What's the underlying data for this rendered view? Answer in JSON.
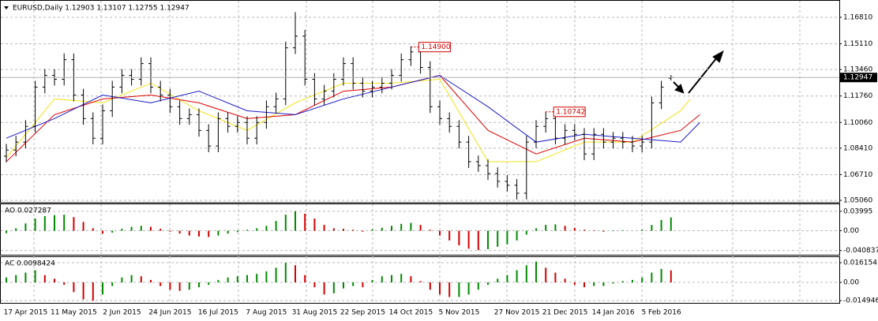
{
  "chart_data": [
    {
      "type": "ohlc",
      "title": "EURUSD,Daily  1.12903 1.13107 1.12755 1.12947",
      "color": "#000000",
      "categories": [
        null,
        null,
        "17 Apr 2015",
        null,
        null,
        null,
        null,
        "11 May 2015",
        null,
        null,
        null,
        null,
        "2 Jun 2015",
        null,
        null,
        null,
        null,
        "24 Jun 2015",
        null,
        null,
        null,
        null,
        "16 Jul 2015",
        null,
        null,
        null,
        null,
        "7 Aug 2015",
        null,
        null,
        null,
        null,
        "31 Aug 2015",
        null,
        null,
        null,
        null,
        "22 Sep 2015",
        null,
        null,
        null,
        null,
        "14 Oct 2015",
        null,
        null,
        null,
        null,
        "5 Nov 2015",
        null,
        null,
        null,
        null,
        null,
        "27 Nov 2015",
        null,
        null,
        null,
        null,
        "21 Dec 2015",
        null,
        null,
        null,
        null,
        "14 Jan 2016",
        null,
        null,
        null,
        null,
        "5 Feb 2016",
        null
      ],
      "open": [
        1.079,
        1.0829,
        1.088,
        1.0981,
        1.1233,
        1.1308,
        1.1283,
        1.1409,
        1.1182,
        1.1031,
        1.0905,
        1.1081,
        1.1233,
        1.1308,
        1.1283,
        1.1384,
        1.1233,
        1.1182,
        1.1107,
        1.1031,
        1.1056,
        1.0955,
        1.0855,
        1.1031,
        1.0981,
        1.1006,
        1.0905,
        1.1006,
        1.1107,
        1.1157,
        1.1485,
        1.156,
        1.1283,
        1.1157,
        1.1207,
        1.1283,
        1.1384,
        1.1258,
        1.1207,
        1.1233,
        1.1258,
        1.1308,
        1.1409,
        1.1459,
        1.1359,
        1.1107,
        1.1031,
        1.0981,
        1.088,
        1.0754,
        1.0729,
        1.0678,
        1.0628,
        1.0603,
        1.0552,
        1.088,
        1.0981,
        1.1031,
        1.0905,
        1.0955,
        1.093,
        1.0804,
        1.093,
        1.088,
        1.0905,
        1.088,
        1.0855,
        1.088,
        1.1132,
        1.12903
      ],
      "high": [
        1.0869,
        1.092,
        1.1021,
        1.1273,
        1.1348,
        1.1348,
        1.1449,
        1.1449,
        1.1222,
        1.1071,
        1.1121,
        1.1273,
        1.1348,
        1.1348,
        1.1424,
        1.1424,
        1.1273,
        1.1222,
        1.1147,
        1.1096,
        1.1096,
        1.0995,
        1.1071,
        1.1071,
        1.1046,
        1.1046,
        1.1046,
        1.1147,
        1.1197,
        1.1525,
        1.1714,
        1.16,
        1.1323,
        1.1247,
        1.1323,
        1.1424,
        1.1424,
        1.1298,
        1.1273,
        1.1298,
        1.1348,
        1.1449,
        1.1495,
        1.1499,
        1.1399,
        1.1147,
        1.1071,
        1.1021,
        1.092,
        1.0794,
        1.0769,
        1.0718,
        1.0668,
        1.0643,
        1.092,
        1.1021,
        1.1074,
        1.1071,
        1.0995,
        1.0995,
        1.097,
        1.097,
        1.097,
        1.0945,
        1.0945,
        1.092,
        1.092,
        1.1172,
        1.1273,
        1.13107
      ],
      "low": [
        1.075,
        1.0789,
        1.084,
        1.0941,
        1.1193,
        1.1243,
        1.1243,
        1.1142,
        1.0991,
        1.0865,
        1.0865,
        1.1041,
        1.1193,
        1.1243,
        1.1243,
        1.1193,
        1.1142,
        1.1067,
        1.0991,
        1.0991,
        1.0915,
        1.0815,
        1.0815,
        1.0941,
        1.0941,
        1.0865,
        1.0865,
        1.0966,
        1.1067,
        1.1117,
        1.1445,
        1.1243,
        1.1117,
        1.1117,
        1.1167,
        1.1243,
        1.1218,
        1.1167,
        1.1167,
        1.1193,
        1.1218,
        1.1268,
        1.1369,
        1.1319,
        1.1067,
        1.0991,
        1.0941,
        1.084,
        1.0714,
        1.0689,
        1.0638,
        1.0588,
        1.0563,
        1.0512,
        1.0512,
        1.084,
        1.0941,
        1.0865,
        1.0865,
        1.089,
        1.0764,
        1.0764,
        1.084,
        1.084,
        1.084,
        1.0815,
        1.0815,
        1.084,
        1.1092,
        1.12755
      ],
      "close": [
        1.0829,
        1.088,
        1.0981,
        1.1233,
        1.1308,
        1.1283,
        1.1409,
        1.1182,
        1.1031,
        1.0905,
        1.1081,
        1.1233,
        1.1308,
        1.1283,
        1.1384,
        1.1233,
        1.1182,
        1.1107,
        1.1031,
        1.1056,
        1.0955,
        1.0855,
        1.1031,
        1.0981,
        1.1006,
        1.0905,
        1.1006,
        1.1107,
        1.1157,
        1.1485,
        1.156,
        1.1283,
        1.1157,
        1.1207,
        1.1283,
        1.1384,
        1.1258,
        1.1207,
        1.1233,
        1.1258,
        1.1308,
        1.1409,
        1.1459,
        1.1359,
        1.1107,
        1.1031,
        1.0981,
        1.088,
        1.0754,
        1.0729,
        1.0678,
        1.0628,
        1.0603,
        1.0552,
        1.088,
        1.0981,
        1.1031,
        1.0905,
        1.0955,
        1.093,
        1.0804,
        1.093,
        1.088,
        1.0905,
        1.088,
        1.0855,
        1.088,
        1.1132,
        1.1233,
        1.12947
      ],
      "series": [
        {
          "color": "#f2e21a",
          "x": [
            0,
            5,
            10,
            15,
            20,
            25,
            30,
            35,
            40,
            45,
            50,
            55,
            60,
            65,
            70,
            71
          ],
          "values": [
            1.0779,
            1.1157,
            1.1132,
            1.1258,
            1.1081,
            1.0955,
            1.1132,
            1.1258,
            1.1258,
            1.1283,
            1.0754,
            1.0754,
            1.088,
            1.088,
            1.1081,
            1.1157
          ]
        },
        {
          "color": "#e00000",
          "x": [
            0,
            5,
            10,
            15,
            20,
            25,
            30,
            35,
            40,
            45,
            50,
            55,
            60,
            65,
            70,
            72
          ],
          "values": [
            1.0754,
            1.1056,
            1.1157,
            1.1182,
            1.1132,
            1.1031,
            1.1056,
            1.1207,
            1.1233,
            1.1308,
            1.0955,
            1.0804,
            1.0905,
            1.088,
            1.0955,
            1.1056
          ]
        },
        {
          "color": "#1a1ac8",
          "x": [
            0,
            5,
            10,
            15,
            20,
            25,
            30,
            35,
            40,
            45,
            50,
            55,
            60,
            65,
            70,
            72
          ],
          "values": [
            1.0905,
            1.1031,
            1.1182,
            1.1132,
            1.1207,
            1.1081,
            1.1056,
            1.1157,
            1.1233,
            1.1308,
            1.1107,
            1.088,
            1.093,
            1.0905,
            1.088,
            1.1006
          ]
        }
      ],
      "annotations": [
        {
          "bar": 42,
          "value": 1.149,
          "label": "1.14900"
        },
        {
          "bar": 56,
          "value": 1.10742,
          "label": "1.10742"
        }
      ],
      "last_price": {
        "value": 1.12947,
        "label": "1.12947"
      },
      "ylim": [
        1.0491,
        1.1787
      ],
      "yticks": [
        {
          "value": 1.1681,
          "label": "1.16810"
        },
        {
          "value": 1.1511,
          "label": "1.15110"
        },
        {
          "value": 1.1346,
          "label": "1.13460"
        },
        {
          "value": 1.1176,
          "label": "1.11760"
        },
        {
          "value": 1.1006,
          "label": "1.10060"
        },
        {
          "value": 1.0841,
          "label": "1.08410"
        },
        {
          "value": 1.0671,
          "label": "1.06710"
        },
        {
          "value": 1.0506,
          "label": "1.05060"
        }
      ],
      "grid": true
    },
    {
      "type": "histogram",
      "title": "AO 0.027287",
      "up_color": "#008a00",
      "down_color": "#d40000",
      "values": [
        -0.005,
        0.005,
        0.015,
        0.025,
        0.03,
        0.032,
        0.033,
        0.028,
        0.018,
        0.005,
        -0.006,
        -0.004,
        0.004,
        0.008,
        0.01,
        0.008,
        0.004,
        -0.002,
        -0.006,
        -0.01,
        -0.012,
        -0.013,
        -0.01,
        -0.006,
        -0.003,
        0.002,
        0.005,
        0.01,
        0.02,
        0.033,
        0.04,
        0.035,
        0.025,
        0.012,
        0.005,
        0.004,
        0.002,
        -0.002,
        0.003,
        0.006,
        0.01,
        0.014,
        0.016,
        0.012,
        0.002,
        -0.01,
        -0.02,
        -0.03,
        -0.037,
        -0.04,
        -0.038,
        -0.033,
        -0.028,
        -0.02,
        -0.008,
        0.005,
        0.012,
        0.013,
        0.01,
        0.006,
        0.002,
        0.001,
        -0.002,
        -0.001,
        0.001,
        0,
        0.002,
        0.012,
        0.022,
        0.027287
      ],
      "ylim": [
        -0.0511,
        0.0544
      ],
      "yticks": [
        0.03995,
        {
          "value": 0,
          "label": "0.00"
        },
        -0.040837
      ],
      "grid": true
    },
    {
      "type": "histogram",
      "title": "AC 0.0098424",
      "up_color": "#008a00",
      "down_color": "#d40000",
      "values": [
        0.004,
        0.006,
        0.008,
        0.01,
        0.006,
        0.003,
        -0.002,
        -0.008,
        -0.014,
        -0.015,
        -0.01,
        -0.003,
        0.004,
        0.006,
        0.005,
        0.002,
        -0.003,
        -0.006,
        -0.007,
        -0.006,
        -0.004,
        -0.002,
        0.002,
        0.004,
        0.005,
        0.006,
        0.007,
        0.009,
        0.012,
        0.016,
        0.014,
        0.006,
        -0.004,
        -0.01,
        -0.009,
        -0.005,
        -0.003,
        -0.004,
        0.002,
        0.005,
        0.006,
        0.007,
        0.005,
        0.001,
        -0.006,
        -0.01,
        -0.012,
        -0.012,
        -0.01,
        -0.006,
        -0.002,
        0.003,
        0.006,
        0.01,
        0.014,
        0.017,
        0.012,
        0.008,
        0.003,
        -0.002,
        -0.004,
        -0.003,
        -0.003,
        -0.001,
        0.001,
        0.002,
        0.004,
        0.008,
        0.011,
        0.0098424
      ],
      "ylim": [
        -0.0168,
        0.0207
      ],
      "yticks": [
        0.016154,
        {
          "value": 0,
          "label": "0.00"
        },
        -0.014946
      ],
      "grid": true
    }
  ]
}
